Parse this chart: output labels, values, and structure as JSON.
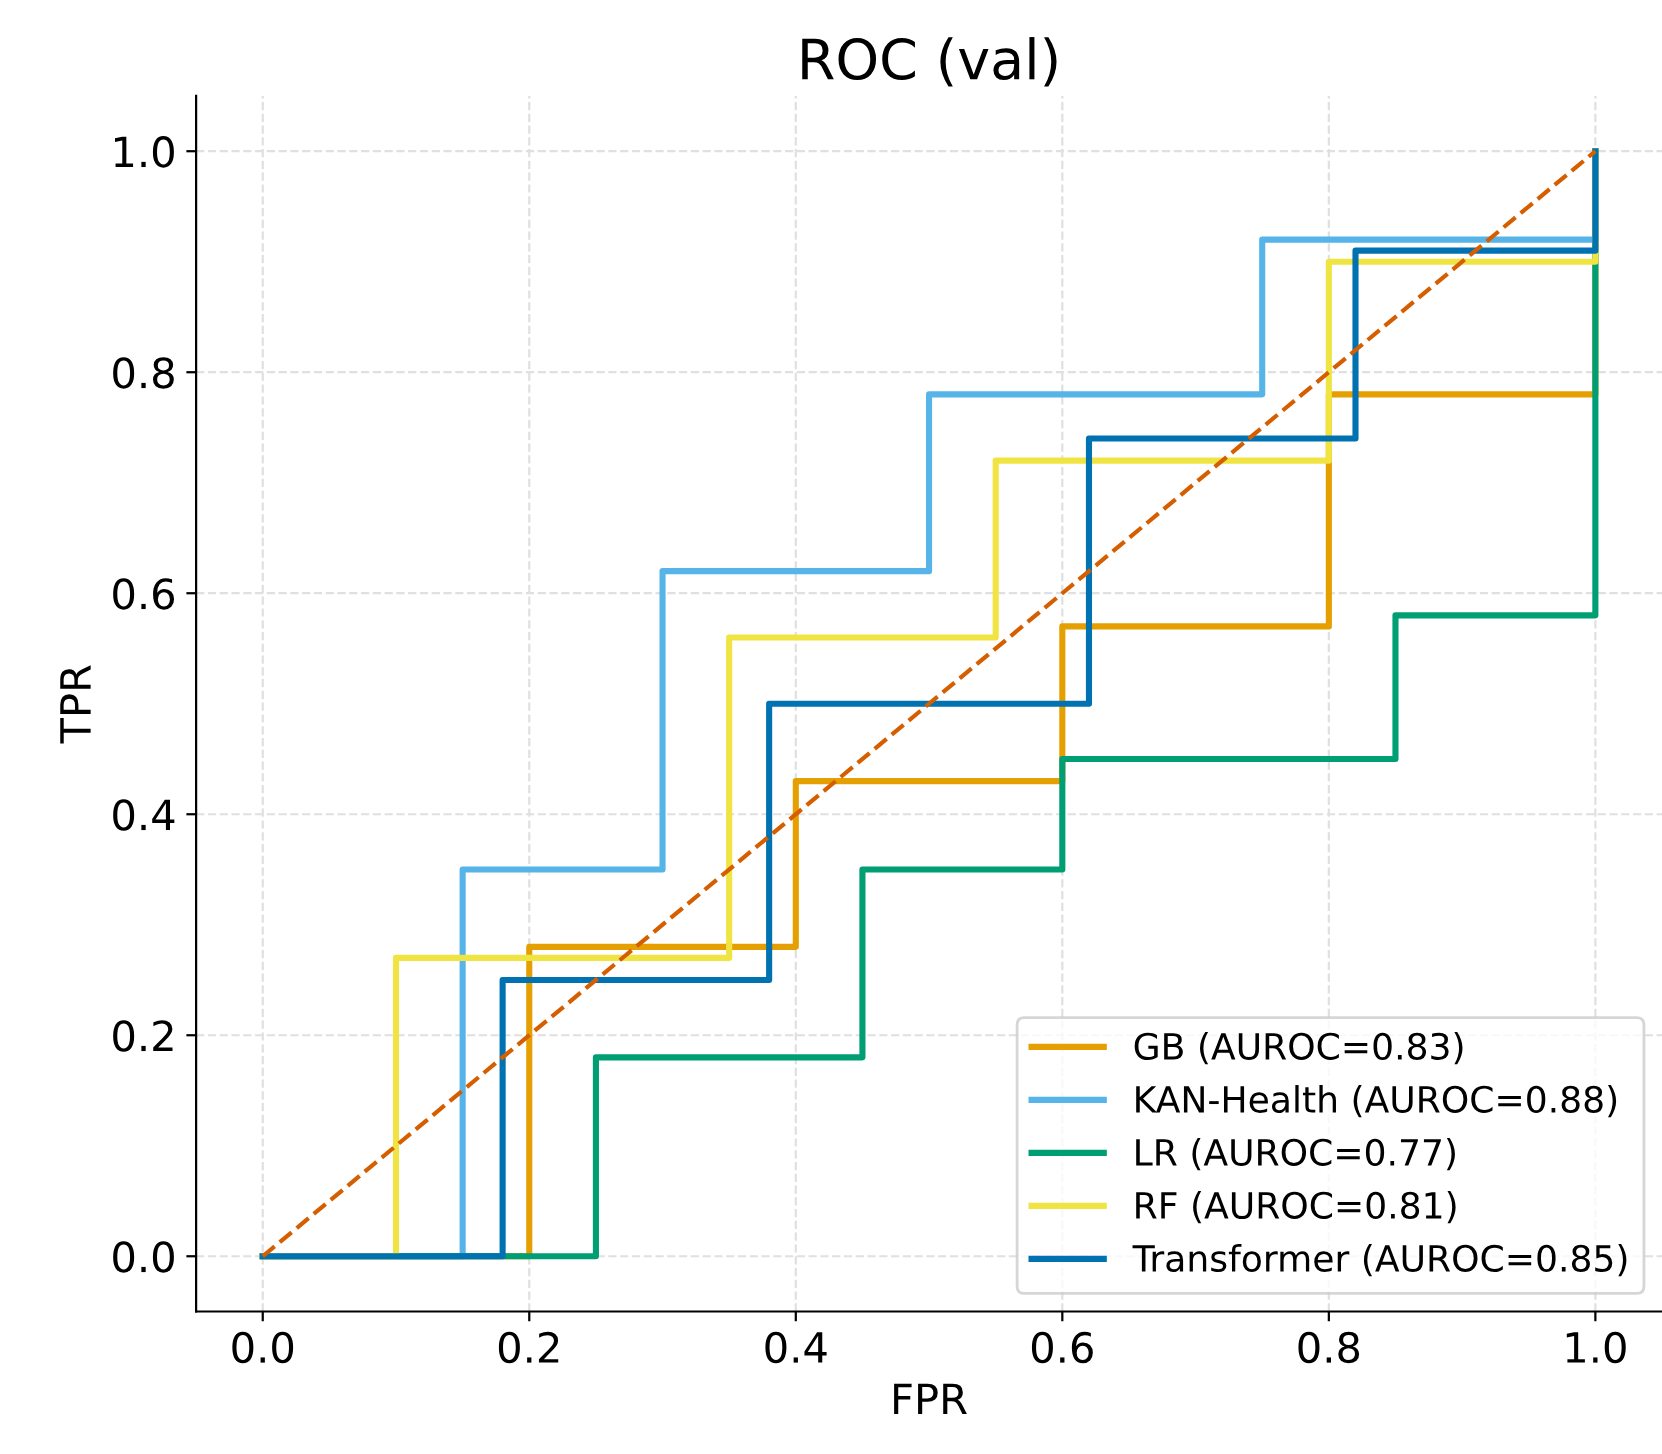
{
  "chart_data": {
    "type": "step",
    "title": "ROC (val)",
    "xlabel": "FPR",
    "ylabel": "TPR",
    "xlim": [
      -0.05,
      1.05
    ],
    "ylim": [
      -0.05,
      1.05
    ],
    "xticks": [
      {
        "value": 0,
        "label": "0.0"
      },
      {
        "value": 0.2,
        "label": "0.2"
      },
      {
        "value": 0.4,
        "label": "0.4"
      },
      {
        "value": 0.6,
        "label": "0.6"
      },
      {
        "value": 0.8,
        "label": "0.8"
      },
      {
        "value": 1,
        "label": "1.0"
      }
    ],
    "yticks": [
      {
        "value": 0,
        "label": "0.0"
      },
      {
        "value": 0.2,
        "label": "0.2"
      },
      {
        "value": 0.4,
        "label": "0.4"
      },
      {
        "value": 0.6,
        "label": "0.6"
      },
      {
        "value": 0.8,
        "label": "0.8"
      },
      {
        "value": 1,
        "label": "1.0"
      }
    ],
    "grid": true,
    "legend": "bottom right",
    "series": [
      {
        "name": "GB (AUROC=0.83)",
        "color": "#e69f00",
        "x": [
          0,
          0.2,
          0.4,
          0.6,
          0.8,
          1.0,
          1.0
        ],
        "values": [
          0,
          0.28,
          0.43,
          0.57,
          0.78,
          0.78,
          1.0
        ]
      },
      {
        "name": "KAN-Health (AUROC=0.88)",
        "color": "#56b4e9",
        "x": [
          0,
          0.15,
          0.3,
          0.5,
          0.75,
          1.0,
          1.0
        ],
        "values": [
          0,
          0.35,
          0.62,
          0.78,
          0.92,
          0.92,
          1.0
        ]
      },
      {
        "name": "LR (AUROC=0.77)",
        "color": "#009e73",
        "x": [
          0,
          0.25,
          0.45,
          0.6,
          0.85,
          1.0,
          1.0
        ],
        "values": [
          0,
          0.18,
          0.35,
          0.45,
          0.58,
          0.58,
          1.0
        ]
      },
      {
        "name": "RF (AUROC=0.81)",
        "color": "#f0e442",
        "x": [
          0,
          0.1,
          0.35,
          0.55,
          0.8,
          1.0,
          1.0
        ],
        "values": [
          0,
          0.27,
          0.56,
          0.72,
          0.9,
          0.9,
          1.0
        ]
      },
      {
        "name": "Transformer (AUROC=0.85)",
        "color": "#0072b2",
        "x": [
          0,
          0.18,
          0.38,
          0.62,
          0.82,
          1.0,
          1.0
        ],
        "values": [
          0,
          0.25,
          0.5,
          0.74,
          0.91,
          0.91,
          1.0
        ]
      },
      {
        "type": "line",
        "line_style": "dashed",
        "color": "#d55e00",
        "x": [
          0,
          1
        ],
        "values": [
          0,
          1
        ]
      }
    ]
  }
}
